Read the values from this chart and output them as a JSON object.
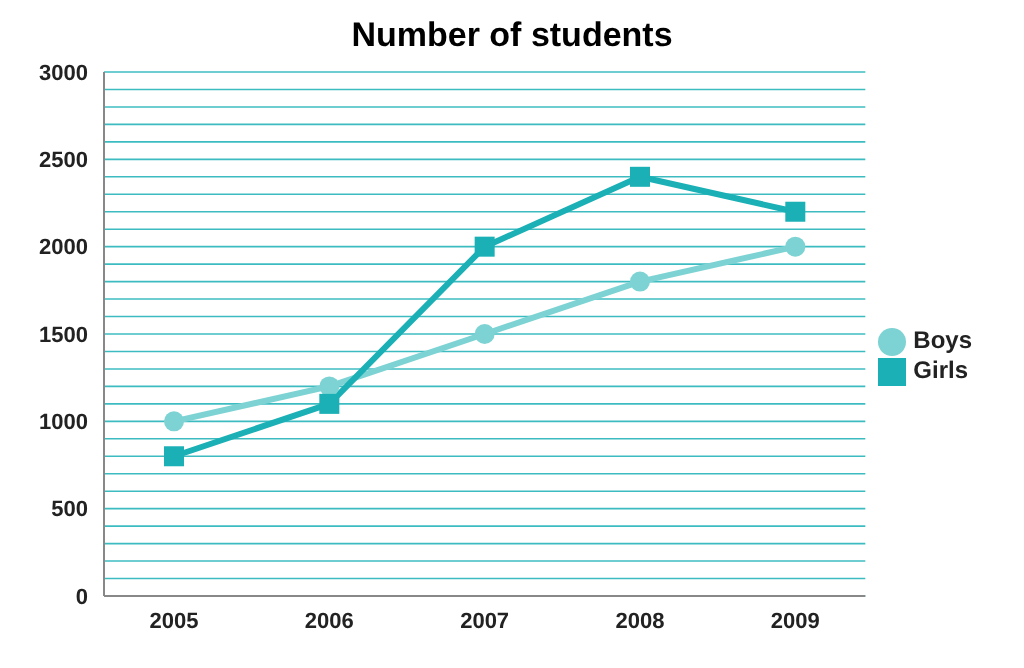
{
  "chart_data": {
    "type": "line",
    "title": "Number of students",
    "categories": [
      "2005",
      "2006",
      "2007",
      "2008",
      "2009"
    ],
    "series": [
      {
        "name": "Boys",
        "color": "#7dd3d3",
        "values": [
          1000,
          1200,
          1500,
          1800,
          2000
        ],
        "marker": "circle"
      },
      {
        "name": "Girls",
        "color": "#1ab0b5",
        "values": [
          800,
          1100,
          2000,
          2400,
          2200
        ],
        "marker": "square"
      }
    ],
    "ylim": [
      0,
      3000
    ],
    "yticks": [
      0,
      {
        "value": 100,
        "label": null
      },
      {
        "value": 200,
        "label": null
      },
      {
        "value": 300,
        "label": null
      },
      {
        "value": 400,
        "label": null
      },
      500,
      {
        "value": 600,
        "label": null
      },
      {
        "value": 700,
        "label": null
      },
      {
        "value": 800,
        "label": null
      },
      {
        "value": 900,
        "label": null
      },
      1000,
      {
        "value": 1100,
        "label": null
      },
      {
        "value": 1200,
        "label": null
      },
      {
        "value": 1300,
        "label": null
      },
      {
        "value": 1400,
        "label": null
      },
      1500,
      {
        "value": 1600,
        "label": null
      },
      {
        "value": 1700,
        "label": null
      },
      {
        "value": 1800,
        "label": null
      },
      {
        "value": 1900,
        "label": null
      },
      2000,
      {
        "value": 2100,
        "label": null
      },
      {
        "value": 2200,
        "label": null
      },
      {
        "value": 2300,
        "label": null
      },
      {
        "value": 2400,
        "label": null
      },
      2500,
      {
        "value": 2600,
        "label": null
      },
      {
        "value": 2700,
        "label": null
      },
      {
        "value": 2800,
        "label": null
      },
      {
        "value": 2900,
        "label": null
      },
      3000
    ],
    "grid": "y",
    "legend": "right",
    "line_style": "solid"
  }
}
